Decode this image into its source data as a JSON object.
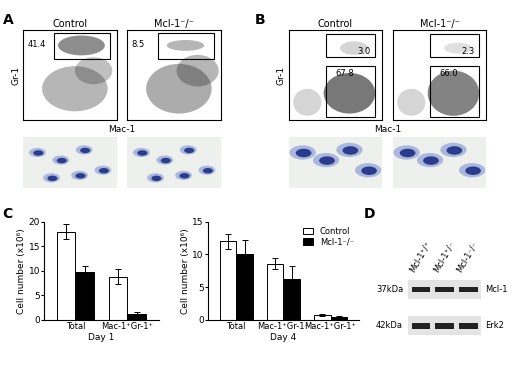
{
  "panel_labels": [
    "A",
    "B",
    "C",
    "D"
  ],
  "flow_panels": [
    {
      "x_label": "Mac-1",
      "y_label": "Gr-1",
      "plots": [
        {
          "title": "Control",
          "gates": [
            41.4
          ]
        },
        {
          "title": "Mcl-1⁻/⁻",
          "gates": [
            8.5
          ]
        }
      ]
    },
    {
      "x_label": "Mac-1",
      "y_label": "Gr-1",
      "plots": [
        {
          "title": "Control",
          "gates": [
            3.0,
            67.8
          ]
        },
        {
          "title": "Mcl-1⁻/⁻",
          "gates": [
            2.3,
            66.0
          ]
        }
      ]
    }
  ],
  "chart_data": [
    {
      "type": "bar",
      "x_label": "Day 1",
      "y_label": "Cell number (x10⁶)",
      "categories": [
        "Total",
        "Mac-1⁺Gr-1⁺"
      ],
      "series": [
        {
          "name": "Control",
          "color": "#ffffff",
          "values": [
            18,
            8.8
          ],
          "errors": [
            1.5,
            1.5
          ]
        },
        {
          "name": "Mcl-1⁻/⁻",
          "color": "#000000",
          "values": [
            9.8,
            1.2
          ],
          "errors": [
            1.2,
            0.4
          ]
        }
      ],
      "ylim": [
        0,
        20
      ],
      "yticks": [
        0,
        5,
        10,
        15,
        20
      ]
    },
    {
      "type": "bar",
      "x_label": "Day 4",
      "y_label": "Cell number (x10⁶)",
      "categories": [
        "Total",
        "Mac-1⁺Gr-1⁻",
        "Mac-1⁺Gr-1⁺"
      ],
      "series": [
        {
          "name": "Control",
          "color": "#ffffff",
          "values": [
            12,
            8.6,
            0.7
          ],
          "errors": [
            1.2,
            0.8,
            0.1
          ]
        },
        {
          "name": "Mcl-1⁻/⁻",
          "color": "#000000",
          "values": [
            10,
            6.2,
            0.4
          ],
          "errors": [
            2.2,
            2.0,
            0.1
          ]
        }
      ],
      "ylim": [
        0,
        15
      ],
      "yticks": [
        0,
        5,
        10,
        15
      ],
      "legend": "upper right"
    }
  ],
  "blot": {
    "lanes": [
      "Mcl-1⁺/⁺",
      "Mcl-1⁺/⁻",
      "Mcl-1⁻/⁻"
    ],
    "bands": [
      {
        "size": "37kDa",
        "protein": "Mcl-1"
      },
      {
        "size": "42kDa",
        "protein": "Erk2"
      }
    ]
  }
}
